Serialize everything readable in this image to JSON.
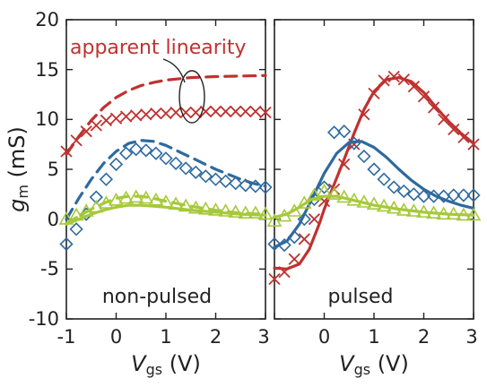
{
  "colors": {
    "red": "#c0312f",
    "blue": "#2e6a9e",
    "green": "#a6c93a",
    "axis": "#222222"
  },
  "chart_data": [
    {
      "type": "line",
      "panel": "left",
      "panel_label": "non-pulsed",
      "annotation": "apparent linearity",
      "xlabel_main": "V",
      "xlabel_sub": "gs",
      "xlabel_unit": " (V)",
      "ylabel_main": "g",
      "ylabel_sub": "m",
      "ylabel_unit": " (mS)",
      "xlim": [
        -1,
        3
      ],
      "ylim": [
        -10,
        20
      ],
      "xticks": [
        "-1",
        "0",
        "1",
        "2",
        "3"
      ],
      "yticks": [
        "-10",
        "-5",
        "0",
        "5",
        "10",
        "15",
        "20"
      ],
      "series": [
        {
          "color": "red",
          "kind": "dashed",
          "x": [
            -1,
            -0.75,
            -0.5,
            -0.25,
            0,
            0.25,
            0.5,
            0.75,
            1,
            1.5,
            2,
            2.5,
            3
          ],
          "y": [
            6.5,
            8.3,
            9.9,
            11.2,
            12.2,
            12.9,
            13.4,
            13.7,
            13.95,
            14.2,
            14.3,
            14.35,
            14.4
          ]
        },
        {
          "color": "red",
          "kind": "x-marker",
          "x": [
            -1,
            -0.8,
            -0.6,
            -0.4,
            -0.2,
            0,
            0.2,
            0.4,
            0.6,
            0.8,
            1,
            1.2,
            1.4,
            1.6,
            1.8,
            2,
            2.2,
            2.4,
            2.6,
            2.8,
            3
          ],
          "y": [
            6.8,
            7.9,
            8.8,
            9.4,
            9.9,
            10.1,
            10.3,
            10.4,
            10.5,
            10.6,
            10.6,
            10.7,
            10.7,
            10.7,
            10.8,
            10.8,
            10.8,
            10.8,
            10.8,
            10.8,
            10.7
          ]
        },
        {
          "color": "blue",
          "kind": "dashed",
          "x": [
            -1,
            -0.75,
            -0.5,
            -0.25,
            0,
            0.25,
            0.5,
            0.75,
            1,
            1.25,
            1.5,
            1.75,
            2,
            2.25,
            2.5,
            2.75,
            3
          ],
          "y": [
            0,
            2.1,
            4.0,
            5.6,
            6.8,
            7.6,
            7.9,
            7.8,
            7.4,
            6.8,
            6.2,
            5.6,
            5.0,
            4.5,
            4.0,
            3.6,
            3.3
          ]
        },
        {
          "color": "blue",
          "kind": "diamond-marker",
          "x": [
            -1,
            -0.8,
            -0.6,
            -0.4,
            -0.2,
            0,
            0.2,
            0.4,
            0.6,
            0.8,
            1,
            1.2,
            1.4,
            1.6,
            1.8,
            2,
            2.2,
            2.4,
            2.6,
            2.8,
            3
          ],
          "y": [
            -2.5,
            -1.0,
            0.5,
            2.2,
            4.0,
            5.5,
            6.6,
            7.0,
            6.9,
            6.6,
            6.1,
            5.6,
            5.1,
            4.7,
            4.3,
            4.0,
            3.8,
            3.6,
            3.4,
            3.3,
            3.2
          ]
        },
        {
          "color": "green",
          "kind": "dashed",
          "x": [
            -1,
            -0.75,
            -0.5,
            -0.25,
            0,
            0.25,
            0.5,
            0.75,
            1,
            1.5,
            2,
            2.5,
            3
          ],
          "y": [
            -0.4,
            0.3,
            1.0,
            1.6,
            2.1,
            2.3,
            2.3,
            2.1,
            1.8,
            1.3,
            0.9,
            0.6,
            0.5
          ]
        },
        {
          "color": "green",
          "kind": "solid",
          "x": [
            -1,
            -0.75,
            -0.5,
            -0.25,
            0,
            0.25,
            0.5,
            0.75,
            1,
            1.5,
            2,
            2.5,
            3
          ],
          "y": [
            -0.5,
            0.0,
            0.5,
            0.9,
            1.2,
            1.4,
            1.4,
            1.3,
            1.2,
            0.9,
            0.7,
            0.5,
            0.4
          ]
        },
        {
          "color": "green",
          "kind": "triangle-marker",
          "x": [
            -1,
            -0.8,
            -0.6,
            -0.4,
            -0.2,
            0,
            0.2,
            0.4,
            0.6,
            0.8,
            1,
            1.2,
            1.4,
            1.6,
            1.8,
            2,
            2.2,
            2.4,
            2.6,
            2.8,
            3
          ],
          "y": [
            0.0,
            0.4,
            0.8,
            1.2,
            1.6,
            1.9,
            2.1,
            2.2,
            2.1,
            1.9,
            1.7,
            1.5,
            1.3,
            1.1,
            1.0,
            0.9,
            0.8,
            0.7,
            0.6,
            0.6,
            0.5
          ]
        }
      ]
    },
    {
      "type": "line",
      "panel": "right",
      "panel_label": "pulsed",
      "xlabel_main": "V",
      "xlabel_sub": "gs",
      "xlabel_unit": " (V)",
      "xlim": [
        -1,
        3
      ],
      "ylim": [
        -10,
        20
      ],
      "xticks": [
        "0",
        "1",
        "2",
        "3"
      ],
      "series": [
        {
          "color": "red",
          "kind": "solid",
          "x": [
            -1,
            -0.75,
            -0.5,
            -0.3,
            -0.1,
            0,
            0.2,
            0.4,
            0.6,
            0.8,
            1,
            1.25,
            1.5,
            1.75,
            2,
            2.25,
            2.5,
            2.75,
            3
          ],
          "y": [
            -4.9,
            -5.0,
            -4.5,
            -3.0,
            -0.5,
            1.0,
            3.5,
            6.0,
            8.6,
            11.0,
            12.8,
            14.0,
            14.2,
            13.8,
            12.7,
            11.2,
            9.8,
            8.6,
            7.6
          ]
        },
        {
          "color": "red",
          "kind": "x-marker",
          "x": [
            -1,
            -0.8,
            -0.6,
            -0.4,
            -0.2,
            0,
            0.2,
            0.4,
            0.6,
            0.8,
            1,
            1.2,
            1.4,
            1.6,
            1.8,
            2,
            2.2,
            2.4,
            2.6,
            2.8,
            3
          ],
          "y": [
            -6.0,
            -5.3,
            -4.0,
            -2.0,
            0.0,
            1.8,
            3.0,
            5.5,
            7.5,
            10.5,
            12.6,
            13.9,
            14.3,
            14.0,
            13.3,
            12.3,
            11.2,
            10.0,
            9.0,
            8.2,
            7.5
          ]
        },
        {
          "color": "blue",
          "kind": "solid",
          "x": [
            -1,
            -0.75,
            -0.5,
            -0.25,
            0,
            0.25,
            0.5,
            0.75,
            1,
            1.25,
            1.5,
            1.75,
            2,
            2.25,
            2.5,
            2.75,
            3
          ],
          "y": [
            -2.8,
            -2.2,
            -0.5,
            2.0,
            4.6,
            6.6,
            7.7,
            7.8,
            7.2,
            6.2,
            5.0,
            3.9,
            3.0,
            2.3,
            1.8,
            1.4,
            1.1
          ]
        },
        {
          "color": "blue",
          "kind": "diamond-marker",
          "x": [
            -1,
            -0.8,
            -0.6,
            -0.4,
            -0.2,
            0,
            0.2,
            0.4,
            0.6,
            0.8,
            1,
            1.2,
            1.4,
            1.6,
            1.8,
            2,
            2.2,
            2.4,
            2.6,
            2.8,
            3
          ],
          "y": [
            -2.5,
            -2.6,
            -1.8,
            0.0,
            2.0,
            3.2,
            8.7,
            8.8,
            7.6,
            6.3,
            5.0,
            4.0,
            3.2,
            2.8,
            2.5,
            2.3,
            2.3,
            2.3,
            2.4,
            2.4,
            2.4
          ]
        },
        {
          "color": "green",
          "kind": "solid",
          "x": [
            -1,
            -0.75,
            -0.5,
            -0.25,
            0,
            0.25,
            0.5,
            0.75,
            1,
            1.5,
            2,
            2.5,
            3
          ],
          "y": [
            0.2,
            0.5,
            1.2,
            2.0,
            2.3,
            2.3,
            2.0,
            1.7,
            1.4,
            1.0,
            0.7,
            0.5,
            0.4
          ]
        },
        {
          "color": "green",
          "kind": "triangle-marker",
          "x": [
            -1,
            -0.8,
            -0.6,
            -0.4,
            -0.2,
            0,
            0.2,
            0.4,
            0.6,
            0.8,
            1,
            1.2,
            1.4,
            1.6,
            1.8,
            2,
            2.2,
            2.4,
            2.6,
            2.8,
            3
          ],
          "y": [
            -0.2,
            0.3,
            0.8,
            1.6,
            2.4,
            2.8,
            2.5,
            2.2,
            1.9,
            1.7,
            1.5,
            1.3,
            1.1,
            0.9,
            0.8,
            0.7,
            0.6,
            0.5,
            0.5,
            0.4,
            0.4
          ]
        }
      ]
    }
  ]
}
